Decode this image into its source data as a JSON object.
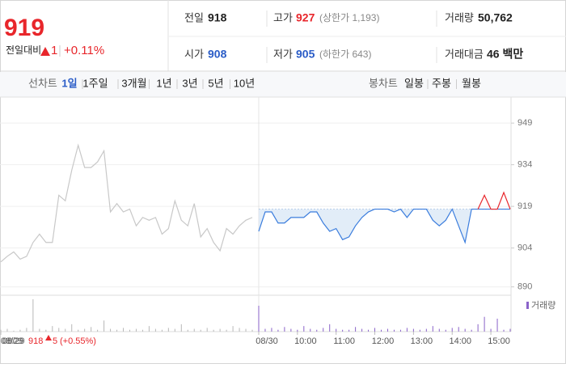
{
  "header": {
    "price": "919",
    "change_label": "전일대비",
    "change": "1",
    "change_pct": "+0.11%",
    "stats": [
      {
        "label": "전일",
        "value": "918",
        "color": "#222222"
      },
      {
        "label": "고가",
        "value": "927",
        "note": "(상한가 1,193)",
        "color": "#e8262b"
      },
      {
        "label": "거래량",
        "value": "50,762",
        "color": "#222222"
      },
      {
        "label": "시가",
        "value": "908",
        "color": "#2a5cc7"
      },
      {
        "label": "저가",
        "value": "905",
        "note": "(하한가 643)",
        "color": "#2a5cc7"
      },
      {
        "label": "거래대금",
        "value": "46 백만",
        "color": "#222222"
      }
    ]
  },
  "tabs": {
    "line_label": "선차트",
    "line_items": [
      "1일",
      "1주일",
      "3개월",
      "1년",
      "3년",
      "5년",
      "10년"
    ],
    "line_selected": 0,
    "candle_label": "봉차트",
    "candle_items": [
      "일봉",
      "주봉",
      "월봉"
    ]
  },
  "chart_data": {
    "type": "line",
    "categories": [
      "08/29",
      null,
      null,
      null,
      null,
      null,
      null,
      null,
      null,
      null,
      null,
      null,
      null,
      null,
      null,
      null,
      null,
      null,
      null,
      null,
      null,
      null,
      null,
      null,
      null,
      null,
      null,
      null,
      null,
      null,
      null,
      null,
      null,
      null,
      null,
      null,
      null,
      null,
      null,
      null,
      "08/30",
      null,
      null,
      null,
      null,
      null,
      "10:00",
      null,
      null,
      null,
      null,
      null,
      "11:00",
      null,
      null,
      null,
      null,
      null,
      "12:00",
      null,
      null,
      null,
      null,
      null,
      "13:00",
      null,
      null,
      null,
      null,
      null,
      "14:00",
      null,
      null,
      null,
      null,
      null,
      "15:00",
      null,
      null,
      null
    ],
    "series": [
      {
        "color": "#c8c8c8",
        "values": [
          899,
          901,
          902.6,
          900,
          901,
          906,
          909,
          906,
          906,
          923,
          921,
          932,
          941,
          933,
          933,
          935,
          939,
          917,
          920,
          917,
          918,
          912,
          915,
          914,
          915,
          909,
          911,
          921,
          914,
          912,
          920,
          908,
          911,
          906,
          903,
          911,
          909,
          912,
          914,
          915,
          null,
          null,
          null,
          null,
          null,
          null,
          null,
          null,
          null,
          null,
          null,
          null,
          null,
          null,
          null,
          null,
          null,
          null,
          null,
          null,
          null,
          null,
          null,
          null,
          null,
          null,
          null,
          null,
          null,
          null,
          null,
          null,
          null,
          null,
          null,
          null,
          null,
          null,
          null,
          null
        ]
      },
      {
        "color": "#3b7ddd",
        "fill": "#dbe8f6",
        "values": [
          null,
          null,
          null,
          null,
          null,
          null,
          null,
          null,
          null,
          null,
          null,
          null,
          null,
          null,
          null,
          null,
          null,
          null,
          null,
          null,
          null,
          null,
          null,
          null,
          null,
          null,
          null,
          null,
          null,
          null,
          null,
          null,
          null,
          null,
          null,
          null,
          null,
          null,
          null,
          null,
          910,
          917,
          917,
          913,
          913,
          915,
          915,
          915,
          917,
          917,
          913,
          910,
          911,
          907,
          908,
          912,
          915,
          917,
          918,
          918,
          918,
          917,
          918,
          915,
          918,
          918,
          918,
          914,
          912,
          914,
          918,
          912,
          906,
          918,
          918,
          918,
          918,
          918,
          918,
          918
        ]
      },
      {
        "color": "#e8262b",
        "values": [
          null,
          null,
          null,
          null,
          null,
          null,
          null,
          null,
          null,
          null,
          null,
          null,
          null,
          null,
          null,
          null,
          null,
          null,
          null,
          null,
          null,
          null,
          null,
          null,
          null,
          null,
          null,
          null,
          null,
          null,
          null,
          null,
          null,
          null,
          null,
          null,
          null,
          null,
          null,
          null,
          null,
          null,
          null,
          null,
          null,
          null,
          null,
          null,
          null,
          null,
          null,
          null,
          null,
          null,
          null,
          null,
          null,
          null,
          null,
          null,
          null,
          null,
          null,
          null,
          null,
          null,
          null,
          null,
          null,
          null,
          null,
          null,
          null,
          null,
          918,
          923,
          918,
          918,
          924,
          918
        ]
      }
    ],
    "baseline": 918,
    "ylim": [
      887,
      954
    ],
    "yticks": [
      890,
      904,
      919,
      934,
      949
    ],
    "grid": true,
    "volume": {
      "label": "거래량",
      "color": "#8a63c9",
      "prev_color": "#b8b8b8",
      "values": [
        2,
        3,
        1,
        2,
        4,
        35,
        3,
        2,
        6,
        4,
        3,
        8,
        2,
        3,
        5,
        2,
        12,
        3,
        2,
        4,
        2,
        3,
        2,
        6,
        3,
        2,
        4,
        3,
        8,
        2,
        3,
        2,
        4,
        2,
        3,
        2,
        6,
        4,
        3,
        2,
        28,
        3,
        4,
        2,
        5,
        3,
        2,
        6,
        3,
        2,
        4,
        8,
        3,
        2,
        2,
        5,
        3,
        2,
        4,
        2,
        3,
        2,
        2,
        4,
        3,
        2,
        3,
        6,
        3,
        2,
        4,
        5,
        3,
        2,
        8,
        16,
        3,
        14,
        2,
        3
      ]
    },
    "prev_summary": {
      "date": "08/29",
      "close": "918",
      "change": "5",
      "change_pct": "(+0.55%)"
    }
  }
}
